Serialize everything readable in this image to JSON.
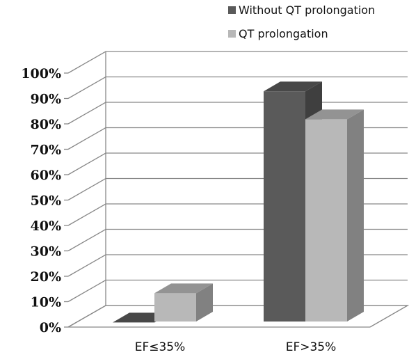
{
  "chart_data": {
    "type": "bar",
    "title": "",
    "xlabel": "",
    "ylabel": "",
    "categories": [
      "EF≤35%",
      "EF>35%"
    ],
    "series": [
      {
        "name": "Without QT prolongation",
        "values": [
          4,
          95
        ]
      },
      {
        "name": "QT prolongation",
        "values": [
          15.5,
          84
        ]
      }
    ],
    "ylim": [
      0,
      100
    ],
    "yticks": [
      "0%",
      "10%",
      "20%",
      "30%",
      "40%",
      "50%",
      "60%",
      "70%",
      "80%",
      "90%",
      "100%"
    ],
    "grid": true,
    "legend_position": "top-right",
    "three_d": true,
    "colors": {
      "Without QT prolongation": "#5a5a5a",
      "QT prolongation": "#b8b8b8"
    }
  }
}
